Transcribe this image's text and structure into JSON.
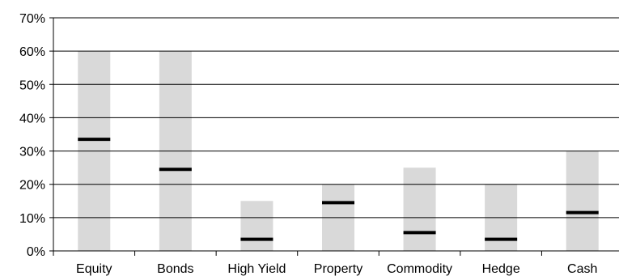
{
  "chart_data": {
    "type": "bar",
    "categories": [
      "Equity",
      "Bonds",
      "High Yield",
      "Property",
      "Commodity",
      "Hedge",
      "Cash"
    ],
    "ranges": [
      {
        "min": 0,
        "max": 60
      },
      {
        "min": 0,
        "max": 60
      },
      {
        "min": 0,
        "max": 15
      },
      {
        "min": 0,
        "max": 20
      },
      {
        "min": 0,
        "max": 25
      },
      {
        "min": 0,
        "max": 20
      },
      {
        "min": 0,
        "max": 30
      }
    ],
    "markers": [
      33.5,
      24.5,
      3.5,
      14.5,
      5.5,
      3.5,
      11.5
    ],
    "yticks": [
      "0%",
      "10%",
      "20%",
      "30%",
      "40%",
      "50%",
      "60%",
      "70%"
    ],
    "ylim": [
      0,
      70
    ],
    "grid": true,
    "colors": {
      "range": "#d9d9d9",
      "marker": "#000000",
      "grid": "#000000"
    }
  }
}
